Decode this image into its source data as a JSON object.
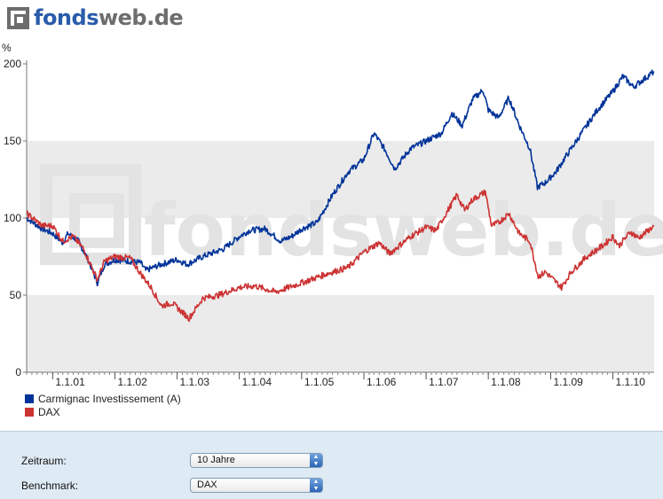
{
  "logo": {
    "part1": "fonds",
    "part2": "web.de",
    "watermark": "fondsweb.de"
  },
  "chart_data": {
    "type": "line",
    "ylabel": "%",
    "ylim": [
      0,
      200
    ],
    "yticks": [
      "0",
      "50",
      "100",
      "150",
      "200"
    ],
    "xlim": [
      "2000-08-01",
      "2010-08-31"
    ],
    "x_tick_labels": [
      "1.1.01",
      "1.1.02",
      "1.1.03",
      "1.1.04",
      "1.1.05",
      "1.1.06",
      "1.1.07",
      "1.1.08",
      "1.1.09",
      "1.1.10"
    ],
    "x_tick_dates": [
      "2001-01-01",
      "2002-01-01",
      "2003-01-01",
      "2004-01-01",
      "2005-01-01",
      "2006-01-01",
      "2007-01-01",
      "2008-01-01",
      "2009-01-01",
      "2010-01-01"
    ],
    "grid": "alternating horizontal bands",
    "legend_position": "bottom-left",
    "series": [
      {
        "name": "Carmignac Investissement (A)",
        "color": "#003399",
        "points": [
          [
            "2000-08-01",
            100
          ],
          [
            "2000-11-01",
            93
          ],
          [
            "2001-01-01",
            90
          ],
          [
            "2001-03-01",
            84
          ],
          [
            "2001-04-01",
            90
          ],
          [
            "2001-06-01",
            85
          ],
          [
            "2001-08-01",
            72
          ],
          [
            "2001-09-20",
            58
          ],
          [
            "2001-11-01",
            70
          ],
          [
            "2002-01-01",
            73
          ],
          [
            "2002-04-01",
            72
          ],
          [
            "2002-06-01",
            71
          ],
          [
            "2002-07-01",
            66
          ],
          [
            "2002-10-01",
            70
          ],
          [
            "2003-01-01",
            73
          ],
          [
            "2003-03-01",
            70
          ],
          [
            "2003-06-01",
            75
          ],
          [
            "2003-10-01",
            80
          ],
          [
            "2004-01-01",
            88
          ],
          [
            "2004-03-01",
            92
          ],
          [
            "2004-06-01",
            93
          ],
          [
            "2004-09-01",
            85
          ],
          [
            "2004-11-01",
            88
          ],
          [
            "2005-01-01",
            93
          ],
          [
            "2005-04-01",
            97
          ],
          [
            "2005-07-01",
            115
          ],
          [
            "2005-10-01",
            130
          ],
          [
            "2006-01-01",
            138
          ],
          [
            "2006-03-01",
            155
          ],
          [
            "2006-05-01",
            145
          ],
          [
            "2006-07-01",
            132
          ],
          [
            "2006-10-01",
            145
          ],
          [
            "2007-01-01",
            150
          ],
          [
            "2007-04-01",
            155
          ],
          [
            "2007-06-01",
            168
          ],
          [
            "2007-08-01",
            160
          ],
          [
            "2007-10-01",
            177
          ],
          [
            "2007-12-01",
            183
          ],
          [
            "2008-01-01",
            170
          ],
          [
            "2008-03-01",
            165
          ],
          [
            "2008-05-01",
            178
          ],
          [
            "2008-07-01",
            160
          ],
          [
            "2008-09-01",
            145
          ],
          [
            "2008-10-15",
            120
          ],
          [
            "2008-12-01",
            123
          ],
          [
            "2009-02-01",
            130
          ],
          [
            "2009-04-01",
            140
          ],
          [
            "2009-07-01",
            155
          ],
          [
            "2009-10-01",
            170
          ],
          [
            "2010-01-01",
            182
          ],
          [
            "2010-03-01",
            192
          ],
          [
            "2010-05-01",
            185
          ],
          [
            "2010-07-01",
            190
          ],
          [
            "2010-08-31",
            195
          ]
        ]
      },
      {
        "name": "DAX",
        "color": "#cc3333",
        "points": [
          [
            "2000-08-01",
            103
          ],
          [
            "2000-11-01",
            95
          ],
          [
            "2001-01-01",
            95
          ],
          [
            "2001-03-01",
            85
          ],
          [
            "2001-05-01",
            88
          ],
          [
            "2001-07-01",
            80
          ],
          [
            "2001-09-20",
            60
          ],
          [
            "2001-11-01",
            72
          ],
          [
            "2002-01-01",
            75
          ],
          [
            "2002-04-01",
            74
          ],
          [
            "2002-06-01",
            64
          ],
          [
            "2002-08-01",
            55
          ],
          [
            "2002-10-01",
            43
          ],
          [
            "2002-12-01",
            45
          ],
          [
            "2003-03-12",
            35
          ],
          [
            "2003-06-01",
            48
          ],
          [
            "2003-09-01",
            50
          ],
          [
            "2004-01-01",
            55
          ],
          [
            "2004-04-01",
            56
          ],
          [
            "2004-08-01",
            52
          ],
          [
            "2005-01-01",
            58
          ],
          [
            "2005-06-01",
            64
          ],
          [
            "2005-10-01",
            68
          ],
          [
            "2006-01-01",
            78
          ],
          [
            "2006-04-01",
            84
          ],
          [
            "2006-06-01",
            77
          ],
          [
            "2006-10-01",
            88
          ],
          [
            "2007-01-01",
            94
          ],
          [
            "2007-03-01",
            92
          ],
          [
            "2007-07-01",
            115
          ],
          [
            "2007-08-15",
            105
          ],
          [
            "2007-10-01",
            112
          ],
          [
            "2007-12-15",
            117
          ],
          [
            "2008-01-20",
            95
          ],
          [
            "2008-03-01",
            97
          ],
          [
            "2008-05-01",
            103
          ],
          [
            "2008-07-01",
            90
          ],
          [
            "2008-09-01",
            85
          ],
          [
            "2008-10-20",
            62
          ],
          [
            "2008-12-01",
            65
          ],
          [
            "2009-03-06",
            55
          ],
          [
            "2009-05-01",
            65
          ],
          [
            "2009-08-01",
            75
          ],
          [
            "2009-11-01",
            82
          ],
          [
            "2010-01-01",
            88
          ],
          [
            "2010-02-05",
            82
          ],
          [
            "2010-04-15",
            91
          ],
          [
            "2010-06-01",
            87
          ],
          [
            "2010-08-31",
            95
          ]
        ]
      }
    ]
  },
  "controls": {
    "period_label": "Zeitraum:",
    "period_value": "10 Jahre",
    "benchmark_label": "Benchmark:",
    "benchmark_value": "DAX"
  }
}
